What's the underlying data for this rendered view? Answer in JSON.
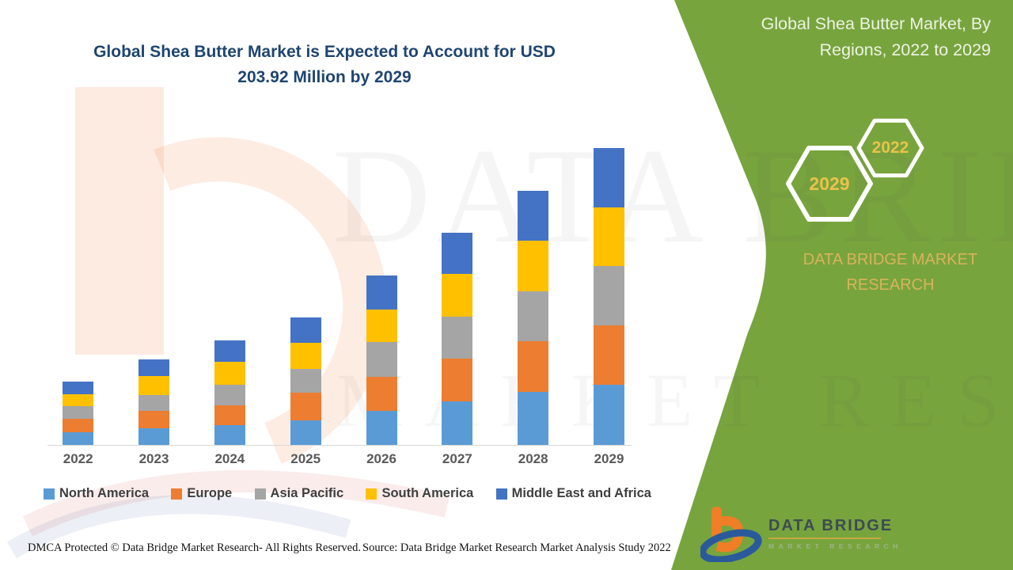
{
  "title": {
    "line1": "Global Shea Butter Market is Expected to Account for USD",
    "line2": "203.92 Million by 2029"
  },
  "panel": {
    "heading_line1": "Global Shea Butter Market, By",
    "heading_line2": "Regions, 2022 to 2029",
    "hex_small_label": "2022",
    "hex_large_label": "2029",
    "brand_text": "DATA BRIDGE MARKET RESEARCH",
    "logo_name": "DATA BRIDGE",
    "logo_sub": "MARKET RESEARCH",
    "colors": {
      "panel_green": "#78A43E",
      "hex_outline": "#FFFFFF",
      "hex_year_gold": "#E9C34A",
      "brand_gold": "#D8B45A"
    }
  },
  "watermark": {
    "line1": "DATA BRIDGE",
    "line2": "MARKET RESEARCH"
  },
  "chart_data": {
    "type": "bar",
    "stacked": true,
    "title": "Global Shea Butter Market, By Regions, 2022 to 2029 (USD Million)",
    "unit": "USD Million",
    "categories": [
      "2022",
      "2023",
      "2024",
      "2025",
      "2026",
      "2027",
      "2028",
      "2029"
    ],
    "series": [
      {
        "name": "North America",
        "color": "#5B9BD5",
        "values": [
          8.7,
          11.4,
          13.4,
          16.7,
          23.5,
          29.9,
          36.2,
          41.32
        ]
      },
      {
        "name": "Europe",
        "color": "#ED7D31",
        "values": [
          9.4,
          12.1,
          13.6,
          19.0,
          23.0,
          29.3,
          35.0,
          40.8
        ]
      },
      {
        "name": "Asia Pacific",
        "color": "#A5A5A5",
        "values": [
          8.7,
          10.9,
          14.5,
          16.7,
          23.9,
          29.0,
          34.4,
          40.8
        ]
      },
      {
        "name": "South America",
        "color": "#FFC000",
        "values": [
          8.2,
          12.9,
          15.8,
          17.8,
          22.3,
          29.0,
          34.8,
          40.4
        ]
      },
      {
        "name": "Middle East and Africa",
        "color": "#4472C4",
        "values": [
          8.5,
          11.2,
          14.6,
          17.2,
          23.5,
          28.4,
          34.1,
          40.6
        ]
      }
    ],
    "totals_by_year": [
      43.5,
      58.5,
      71.9,
      87.4,
      116.2,
      145.6,
      174.5,
      203.92
    ],
    "highlight_value": "USD 203.92 Million by 2029",
    "xlabel": "",
    "ylabel": "",
    "y_axis_visible": false,
    "gridlines": false,
    "legend_position": "bottom"
  },
  "footer": {
    "left": "DMCA Protected © Data Bridge Market Research- All Rights Reserved.",
    "source": "Source: Data Bridge Market Research Market Analysis Study 2022"
  }
}
